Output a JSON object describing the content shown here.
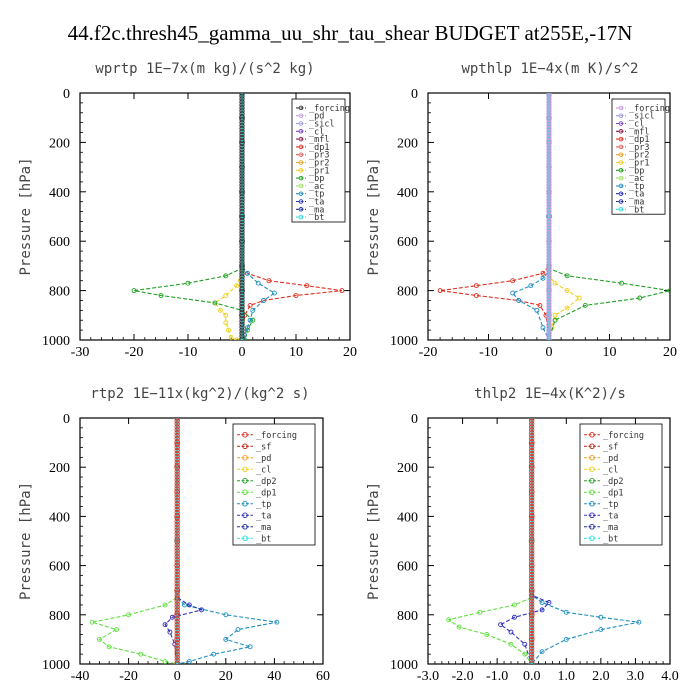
{
  "figure": {
    "title": "44.f2c.thresh45_gamma_uu_shr_tau_shear  BUDGET at255E,-17N"
  },
  "chart_data": [
    {
      "type": "line",
      "title": "wprtp   1E−7x(m kg)/(s^2 kg)",
      "ylabel": "Pressure [hPa]",
      "xlim": [
        -30,
        20
      ],
      "ylim": [
        1000,
        0
      ],
      "xticks": [
        "-30",
        "-20",
        "-10",
        "0",
        "10",
        "20"
      ],
      "yticks": [
        "0",
        "200",
        "400",
        "600",
        "800",
        "1000"
      ],
      "grid": false,
      "legend_position": "top-right",
      "legend_style": "small",
      "series": [
        {
          "name": "_forcing",
          "color": "#333333",
          "x": [
            0,
            0,
            0,
            0,
            0,
            0,
            0,
            0,
            0,
            0,
            0
          ],
          "y": [
            0,
            100,
            200,
            300,
            400,
            500,
            600,
            700,
            800,
            900,
            1000
          ]
        },
        {
          "name": "_pd",
          "color": "#c99ae0",
          "x": [
            0,
            0,
            0
          ],
          "y": [
            0,
            500,
            1000
          ]
        },
        {
          "name": "_sicl",
          "color": "#9a9ae0",
          "x": [
            0,
            0,
            0
          ],
          "y": [
            0,
            500,
            1000
          ]
        },
        {
          "name": "_cl",
          "color": "#7a4ac0",
          "x": [
            0,
            0,
            0
          ],
          "y": [
            0,
            500,
            1000
          ]
        },
        {
          "name": "_mfl",
          "color": "#8a2050",
          "x": [
            0,
            0,
            0
          ],
          "y": [
            0,
            500,
            1000
          ]
        },
        {
          "name": "_dp1",
          "color": "#e03020",
          "x": [
            0,
            0,
            1,
            5,
            12,
            18.5,
            10,
            4,
            1.5,
            0.5,
            0
          ],
          "y": [
            0,
            700,
            730,
            760,
            780,
            800,
            820,
            840,
            860,
            900,
            1000
          ]
        },
        {
          "name": "_pr3",
          "color": "#e06060",
          "x": [
            0,
            0,
            0
          ],
          "y": [
            0,
            500,
            1000
          ]
        },
        {
          "name": "_pr2",
          "color": "#f0a020",
          "x": [
            0,
            0,
            0
          ],
          "y": [
            0,
            500,
            1000
          ]
        },
        {
          "name": "_pr1",
          "color": "#f0d020",
          "x": [
            0,
            0,
            -1,
            -3,
            -5,
            -4,
            -3,
            -3,
            -2.5,
            -2,
            -1
          ],
          "y": [
            0,
            720,
            780,
            820,
            850,
            880,
            900,
            930,
            960,
            990,
            1000
          ]
        },
        {
          "name": "_bp",
          "color": "#20a020",
          "x": [
            0,
            0,
            -3,
            -10,
            -20,
            -15,
            -5,
            0,
            2,
            1,
            0.5
          ],
          "y": [
            0,
            710,
            740,
            770,
            800,
            820,
            850,
            880,
            920,
            960,
            1000
          ]
        },
        {
          "name": "_ac",
          "color": "#a0e060",
          "x": [
            0,
            0,
            0
          ],
          "y": [
            0,
            500,
            1000
          ]
        },
        {
          "name": "_tp",
          "color": "#2090c0",
          "x": [
            0,
            0,
            1,
            3,
            6,
            4,
            2,
            1.5,
            1,
            0.5,
            0
          ],
          "y": [
            0,
            700,
            730,
            770,
            810,
            840,
            880,
            920,
            950,
            980,
            1000
          ]
        },
        {
          "name": "_ta",
          "color": "#3030c0",
          "x": [
            0,
            0,
            0
          ],
          "y": [
            0,
            500,
            1000
          ]
        },
        {
          "name": "_ma",
          "color": "#2030a0",
          "x": [
            0,
            0,
            0
          ],
          "y": [
            0,
            500,
            1000
          ]
        },
        {
          "name": "_bt",
          "color": "#30e0e0",
          "x": [
            0,
            0,
            0
          ],
          "y": [
            0,
            500,
            1000
          ]
        }
      ]
    },
    {
      "type": "line",
      "title": "wpthlp   1E−4x(m K)/s^2",
      "ylabel": "Pressure [hPa]",
      "xlim": [
        -20,
        20
      ],
      "ylim": [
        1000,
        0
      ],
      "xticks": [
        "-20",
        "-10",
        "0",
        "10",
        "20"
      ],
      "yticks": [
        "0",
        "200",
        "400",
        "600",
        "800",
        "1000"
      ],
      "grid": false,
      "legend_position": "top-right",
      "legend_style": "small",
      "series": [
        {
          "name": "_forcing",
          "color": "#c99ae0",
          "x": [
            0,
            0,
            0,
            0,
            0,
            0,
            0,
            0,
            0,
            0,
            0
          ],
          "y": [
            0,
            100,
            200,
            300,
            400,
            500,
            600,
            700,
            800,
            900,
            1000
          ]
        },
        {
          "name": "_sicl",
          "color": "#9a9ae0",
          "x": [
            0,
            0,
            0
          ],
          "y": [
            0,
            500,
            1000
          ]
        },
        {
          "name": "_cl",
          "color": "#7a4ac0",
          "x": [
            0,
            0,
            0
          ],
          "y": [
            0,
            500,
            1000
          ]
        },
        {
          "name": "_mfl",
          "color": "#8a2050",
          "x": [
            0,
            0,
            0
          ],
          "y": [
            0,
            500,
            1000
          ]
        },
        {
          "name": "_dp1",
          "color": "#e03020",
          "x": [
            0,
            0,
            -1,
            -6,
            -12,
            -18,
            -12,
            -5,
            -1.5,
            -0.5,
            0
          ],
          "y": [
            0,
            700,
            730,
            760,
            780,
            800,
            820,
            840,
            860,
            900,
            1000
          ]
        },
        {
          "name": "_pr3",
          "color": "#e06060",
          "x": [
            0,
            0,
            0
          ],
          "y": [
            0,
            500,
            1000
          ]
        },
        {
          "name": "_pr2",
          "color": "#f0a020",
          "x": [
            0,
            0,
            0
          ],
          "y": [
            0,
            500,
            1000
          ]
        },
        {
          "name": "_pr1",
          "color": "#f0d020",
          "x": [
            0,
            0,
            1,
            3,
            5,
            3,
            1,
            0.5,
            0
          ],
          "y": [
            0,
            740,
            770,
            800,
            830,
            870,
            900,
            950,
            1000
          ]
        },
        {
          "name": "_bp",
          "color": "#20a020",
          "x": [
            0,
            0,
            3,
            12,
            20,
            15,
            6,
            1,
            0
          ],
          "y": [
            0,
            710,
            740,
            770,
            800,
            830,
            860,
            920,
            1000
          ]
        },
        {
          "name": "_ac",
          "color": "#a0e060",
          "x": [
            0,
            0,
            0
          ],
          "y": [
            0,
            500,
            1000
          ]
        },
        {
          "name": "_tp",
          "color": "#2090c0",
          "x": [
            0,
            0,
            -1,
            -3,
            -6,
            -5,
            -2,
            -1,
            0
          ],
          "y": [
            0,
            720,
            750,
            780,
            810,
            840,
            880,
            950,
            1000
          ]
        },
        {
          "name": "_ta",
          "color": "#3030c0",
          "x": [
            0,
            0,
            0
          ],
          "y": [
            0,
            500,
            1000
          ]
        },
        {
          "name": "_ma",
          "color": "#2030a0",
          "x": [
            0,
            0,
            0
          ],
          "y": [
            0,
            500,
            1000
          ]
        },
        {
          "name": "_bt",
          "color": "#30e0e0",
          "x": [
            0,
            0,
            0
          ],
          "y": [
            0,
            500,
            1000
          ]
        }
      ]
    },
    {
      "type": "line",
      "title": "rtp2   1E−11x(kg^2)/(kg^2 s)",
      "ylabel": "Pressure [hPa]",
      "xlim": [
        -40,
        60
      ],
      "ylim": [
        1000,
        0
      ],
      "xticks": [
        "-40",
        "-20",
        "0",
        "20",
        "40",
        "60"
      ],
      "yticks": [
        "0",
        "200",
        "400",
        "600",
        "800",
        "1000"
      ],
      "grid": false,
      "legend_position": "top-right",
      "legend_style": "large",
      "series": [
        {
          "name": "_forcing",
          "color": "#e03020",
          "x": [
            0,
            0,
            0,
            0,
            0,
            0,
            0,
            0,
            0,
            0,
            0
          ],
          "y": [
            0,
            100,
            200,
            300,
            400,
            500,
            600,
            700,
            800,
            900,
            1000
          ]
        },
        {
          "name": "_sf",
          "color": "#c02010",
          "x": [
            0,
            0,
            0
          ],
          "y": [
            0,
            500,
            1000
          ]
        },
        {
          "name": "_pd",
          "color": "#f0a020",
          "x": [
            0,
            0,
            0
          ],
          "y": [
            0,
            500,
            1000
          ]
        },
        {
          "name": "_cl",
          "color": "#f0d020",
          "x": [
            0,
            0,
            0
          ],
          "y": [
            0,
            500,
            1000
          ]
        },
        {
          "name": "_dp2",
          "color": "#20a020",
          "x": [
            0,
            0,
            0
          ],
          "y": [
            0,
            500,
            1000
          ]
        },
        {
          "name": "_dp1",
          "color": "#60e040",
          "x": [
            0,
            0,
            -5,
            -20,
            -35,
            -25,
            -32,
            -28,
            -15,
            -5,
            0
          ],
          "y": [
            0,
            730,
            760,
            800,
            830,
            860,
            900,
            930,
            960,
            990,
            1000
          ]
        },
        {
          "name": "_tp",
          "color": "#2090c0",
          "x": [
            0,
            0,
            3,
            20,
            41,
            25,
            20,
            30,
            15,
            5,
            0
          ],
          "y": [
            0,
            730,
            760,
            800,
            830,
            860,
            900,
            930,
            960,
            990,
            1000
          ]
        },
        {
          "name": "_ta",
          "color": "#3030c0",
          "x": [
            0,
            0,
            5,
            10,
            -2,
            -5,
            -3,
            -1,
            0
          ],
          "y": [
            0,
            730,
            760,
            780,
            810,
            840,
            870,
            920,
            1000
          ]
        },
        {
          "name": "_ma",
          "color": "#2030a0",
          "x": [
            0,
            0,
            0
          ],
          "y": [
            0,
            500,
            1000
          ]
        },
        {
          "name": "_bt",
          "color": "#30e0e0",
          "x": [
            0,
            0,
            0
          ],
          "y": [
            0,
            500,
            1000
          ]
        }
      ]
    },
    {
      "type": "line",
      "title": "thlp2   1E−4x(K^2)/s",
      "ylabel": "Pressure [hPa]",
      "xlim": [
        -3.0,
        4.0
      ],
      "ylim": [
        1000,
        0
      ],
      "xticks": [
        "-3.0",
        "-2.0",
        "-1.0",
        "0.0",
        "1.0",
        "2.0",
        "3.0",
        "4.0"
      ],
      "yticks": [
        "0",
        "200",
        "400",
        "600",
        "800",
        "1000"
      ],
      "grid": false,
      "legend_position": "top-right",
      "legend_style": "large",
      "series": [
        {
          "name": "_forcing",
          "color": "#e03020",
          "x": [
            0,
            0,
            0,
            0,
            0,
            0,
            0,
            0,
            0,
            0,
            0
          ],
          "y": [
            0,
            100,
            200,
            300,
            400,
            500,
            600,
            700,
            800,
            900,
            1000
          ]
        },
        {
          "name": "_sf",
          "color": "#c02010",
          "x": [
            0,
            0,
            0
          ],
          "y": [
            0,
            500,
            1000
          ]
        },
        {
          "name": "_pd",
          "color": "#f0a020",
          "x": [
            0,
            0,
            0
          ],
          "y": [
            0,
            500,
            1000
          ]
        },
        {
          "name": "_cl",
          "color": "#f0d020",
          "x": [
            0,
            0,
            0
          ],
          "y": [
            0,
            500,
            1000
          ]
        },
        {
          "name": "_dp2",
          "color": "#20a020",
          "x": [
            0,
            0,
            0
          ],
          "y": [
            0,
            500,
            1000
          ]
        },
        {
          "name": "_dp1",
          "color": "#60e040",
          "x": [
            0,
            0,
            -0.5,
            -1.5,
            -2.4,
            -2.1,
            -1.3,
            -0.6,
            -0.2,
            0
          ],
          "y": [
            0,
            730,
            760,
            790,
            820,
            850,
            880,
            920,
            960,
            1000
          ]
        },
        {
          "name": "_tp",
          "color": "#2090c0",
          "x": [
            0,
            0,
            0.3,
            1,
            2,
            3.1,
            2,
            1,
            0.3,
            0
          ],
          "y": [
            0,
            720,
            750,
            790,
            810,
            830,
            860,
            900,
            950,
            1000
          ]
        },
        {
          "name": "_ta",
          "color": "#3030c0",
          "x": [
            0,
            0,
            0.5,
            0.3,
            -0.5,
            -0.9,
            -0.6,
            -0.2,
            0
          ],
          "y": [
            0,
            720,
            750,
            780,
            810,
            840,
            870,
            920,
            1000
          ]
        },
        {
          "name": "_ma",
          "color": "#2030a0",
          "x": [
            0,
            0,
            0
          ],
          "y": [
            0,
            500,
            1000
          ]
        },
        {
          "name": "_bt",
          "color": "#30e0e0",
          "x": [
            0,
            0,
            0
          ],
          "y": [
            0,
            500,
            1000
          ]
        }
      ]
    }
  ]
}
